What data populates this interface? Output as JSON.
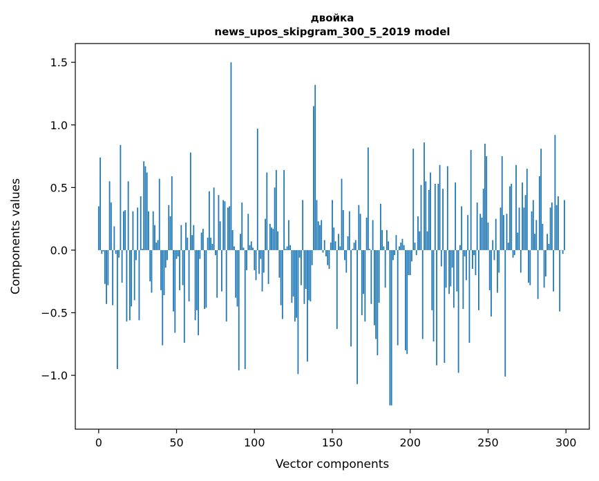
{
  "chart_data": {
    "type": "bar",
    "title": "двойка",
    "subtitle": "news_upos_skipgram_300_5_2019 model",
    "xlabel": "Vector components",
    "ylabel": "Components values",
    "xlim": [
      -15,
      315
    ],
    "ylim": [
      -1.43,
      1.65
    ],
    "xticks": [
      0,
      50,
      100,
      150,
      200,
      250,
      300
    ],
    "yticks": [
      -1.0,
      -0.5,
      0.0,
      0.5,
      1.0,
      1.5
    ],
    "ytick_labels": [
      "−1.0",
      "−0.5",
      "0.0",
      "0.5",
      "1.0",
      "1.5"
    ],
    "grid": false,
    "bar_color": "#1f77b4",
    "x_start": 0,
    "values": [
      0.35,
      0.74,
      -0.03,
      -0.01,
      -0.27,
      -0.43,
      -0.28,
      0.55,
      0.38,
      -0.44,
      0.19,
      -0.03,
      -0.95,
      -0.06,
      0.84,
      -0.26,
      0.31,
      0.32,
      -0.57,
      0.55,
      -0.56,
      -0.45,
      0.31,
      -0.4,
      -0.08,
      0.34,
      -0.56,
      0.43,
      0.01,
      0.71,
      0.67,
      0.62,
      0.31,
      -0.25,
      -0.34,
      0.31,
      0.2,
      0.06,
      0.08,
      0.57,
      -0.32,
      -0.76,
      -0.36,
      -0.14,
      -0.08,
      0.36,
      0.27,
      0.59,
      -0.49,
      -0.66,
      -0.07,
      -0.05,
      -0.32,
      0.2,
      -0.28,
      -0.74,
      0.22,
      0.1,
      -0.41,
      0.78,
      0.12,
      0.2,
      -0.56,
      -0.48,
      -0.68,
      -0.07,
      0.14,
      0.17,
      -0.47,
      -0.46,
      0.1,
      0.47,
      0.1,
      0.05,
      0.5,
      -0.04,
      -0.38,
      0.44,
      0.23,
      -0.33,
      0.4,
      0.39,
      -0.57,
      0.34,
      0.35,
      1.5,
      0.16,
      0.03,
      -0.38,
      -0.45,
      -0.96,
      0.13,
      0.38,
      0.02,
      -0.95,
      -0.16,
      0.29,
      0.04,
      0.07,
      0.02,
      -0.16,
      -0.24,
      0.97,
      -0.19,
      -0.07,
      -0.33,
      -0.18,
      0.25,
      0.62,
      -0.27,
      0.21,
      0.18,
      0.17,
      0.5,
      0.64,
      0.15,
      -0.22,
      -0.44,
      -0.55,
      0.64,
      0.01,
      0.03,
      0.24,
      0.04,
      -0.42,
      -0.37,
      -0.57,
      -0.54,
      -0.99,
      -0.06,
      -0.28,
      0.4,
      -0.43,
      -0.31,
      -0.89,
      -0.4,
      -0.41,
      -0.12,
      1.15,
      1.32,
      0.4,
      0.23,
      0.2,
      0.24,
      -0.02,
      0.08,
      -0.05,
      -0.12,
      -0.15,
      0.06,
      0.4,
      0.18,
      0.07,
      -0.63,
      0.13,
      0.03,
      0.57,
      0.32,
      -0.08,
      -0.18,
      0.11,
      0.31,
      -0.77,
      0.01,
      0.06,
      0.08,
      -1.07,
      0.36,
      0.29,
      -0.52,
      -0.35,
      -0.57,
      0.26,
      0.82,
      0.01,
      -0.43,
      0.24,
      -0.6,
      -0.71,
      -0.84,
      -0.42,
      0.37,
      0.16,
      0.03,
      -0.3,
      0.16,
      0.07,
      -1.24,
      -1.24,
      -0.08,
      -0.04,
      0.12,
      -0.76,
      0.03,
      0.06,
      0.09,
      0.04,
      -0.8,
      -0.83,
      -0.2,
      -0.2,
      -0.09,
      0.81,
      0.06,
      -0.04,
      0.27,
      0.15,
      0.52,
      -0.71,
      0.86,
      0.55,
      0.15,
      0.48,
      0.62,
      -0.48,
      -0.73,
      0.53,
      -0.92,
      0.53,
      0.68,
      -0.13,
      0.49,
      -0.9,
      -0.3,
      0.67,
      -0.35,
      -0.29,
      -0.14,
      -0.46,
      0.54,
      -0.33,
      -0.98,
      0.04,
      0.35,
      -0.47,
      -0.05,
      -0.24,
      0.28,
      -0.74,
      0.8,
      -0.15,
      -0.04,
      -0.2,
      0.38,
      -0.48,
      0.29,
      0.26,
      0.49,
      0.85,
      0.75,
      0.22,
      -0.32,
      -0.53,
      0.08,
      -0.08,
      0.25,
      -0.34,
      -0.18,
      0.34,
      0.75,
      0.28,
      -1.01,
      0.29,
      0.06,
      0.51,
      0.53,
      -0.06,
      -0.04,
      0.68,
      0.14,
      0.34,
      -0.18,
      0.54,
      0.34,
      0.44,
      0.65,
      -0.26,
      -0.28,
      0.31,
      0.4,
      0.13,
      0.24,
      -0.39,
      0.59,
      0.81,
      0.21,
      -0.3,
      -0.21,
      0.13,
      0.05,
      0.34,
      0.38,
      -0.33,
      0.92,
      0.36,
      0.43,
      -0.49,
      0.0,
      -0.03,
      0.4
    ]
  }
}
